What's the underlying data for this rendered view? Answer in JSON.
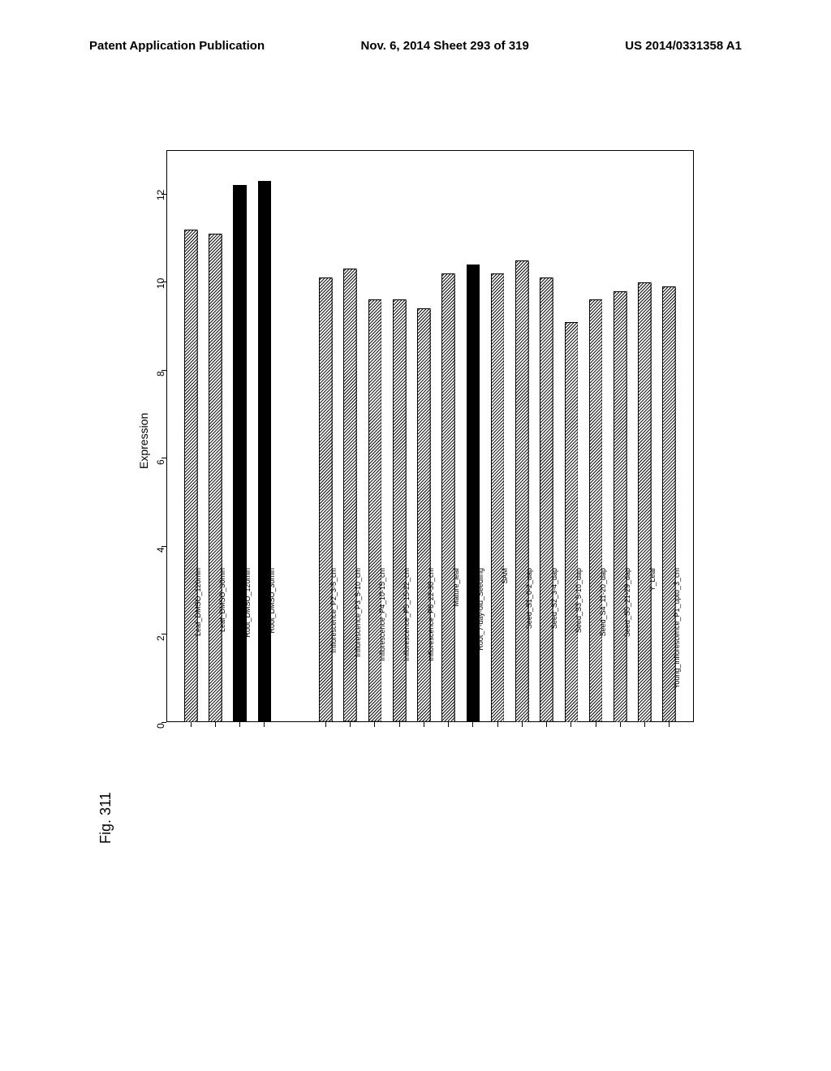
{
  "header": {
    "left": "Patent Application Publication",
    "mid": "Nov. 6, 2014  Sheet 293 of 319",
    "right": "US 2014/0331358 A1"
  },
  "figure_label": "Fig. 311",
  "chart": {
    "type": "bar",
    "rotation_deg": -90,
    "ylabel": "Expression",
    "ylim": [
      0,
      13
    ],
    "yticks": [
      0,
      2,
      4,
      6,
      8,
      10,
      12
    ],
    "ytick_fontsize": 12,
    "label_fontsize": 14,
    "xlabel_fontsize": 9,
    "plot_bg": "#ffffff",
    "border_color": "#000000",
    "border_width": 1.5,
    "bar_color_solid": "#000000",
    "bar_hatch": {
      "stroke": "#000000",
      "bg": "#ffffff",
      "angle_deg": 45,
      "spacing": 4,
      "width": 1
    },
    "bar_rel_width": 0.55,
    "gap_after_index": 3,
    "categories": [
      {
        "label": "Leaf_DMSO_120min",
        "value": 11.2,
        "fill": "hatched"
      },
      {
        "label": "Leaf_DMSO_30min",
        "value": 11.1,
        "fill": "hatched"
      },
      {
        "label": "Root_DMSO_120min",
        "value": 12.2,
        "fill": "solid"
      },
      {
        "label": "Root_DMSO_30min",
        "value": 12.3,
        "fill": "solid"
      },
      {
        "label": "Inflorescence_P2_3-5_cm",
        "value": 10.1,
        "fill": "hatched"
      },
      {
        "label": "Inflorescence_P3_5-10_cm",
        "value": 10.3,
        "fill": "hatched"
      },
      {
        "label": "Inflorescence_P4_10-15_cm",
        "value": 9.6,
        "fill": "hatched"
      },
      {
        "label": "Inflorescence_P5_15-22_cm",
        "value": 9.6,
        "fill": "hatched"
      },
      {
        "label": "Inflorescence_P6_22-30_cm",
        "value": 9.4,
        "fill": "hatched"
      },
      {
        "label": "Mature_leaf",
        "value": 10.2,
        "fill": "hatched"
      },
      {
        "label": "Root_7-day-old_Seedling",
        "value": 10.4,
        "fill": "solid"
      },
      {
        "label": "SAM",
        "value": 10.2,
        "fill": "hatched"
      },
      {
        "label": "Seed_S1_0-2_dap",
        "value": 10.5,
        "fill": "hatched"
      },
      {
        "label": "Seed_S2_3-4_dap",
        "value": 10.1,
        "fill": "hatched"
      },
      {
        "label": "Seed_S3_5-10_dap",
        "value": 9.1,
        "fill": "hatched"
      },
      {
        "label": "Seed_S4_11-20_dap",
        "value": 9.6,
        "fill": "hatched"
      },
      {
        "label": "Seed_S5_21-29_dap",
        "value": 9.8,
        "fill": "hatched"
      },
      {
        "label": "Y_Leaf",
        "value": 10.0,
        "fill": "hatched"
      },
      {
        "label": "Young_inflorescence_P1_upto_3_cm",
        "value": 9.9,
        "fill": "hatched"
      }
    ]
  }
}
